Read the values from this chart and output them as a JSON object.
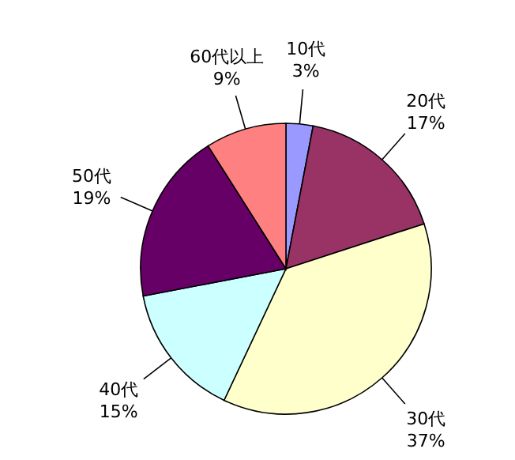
{
  "chart_data": {
    "type": "pie",
    "categories": [
      "10代",
      "20代",
      "30代",
      "40代",
      "50代",
      "60代以上"
    ],
    "values": [
      3,
      17,
      37,
      15,
      19,
      9
    ],
    "value_labels": [
      "3%",
      "17%",
      "37%",
      "15%",
      "19%",
      "9%"
    ],
    "colors": [
      "#9999ff",
      "#993366",
      "#ffffcc",
      "#ccffff",
      "#660066",
      "#ff8080"
    ],
    "legend": false
  }
}
